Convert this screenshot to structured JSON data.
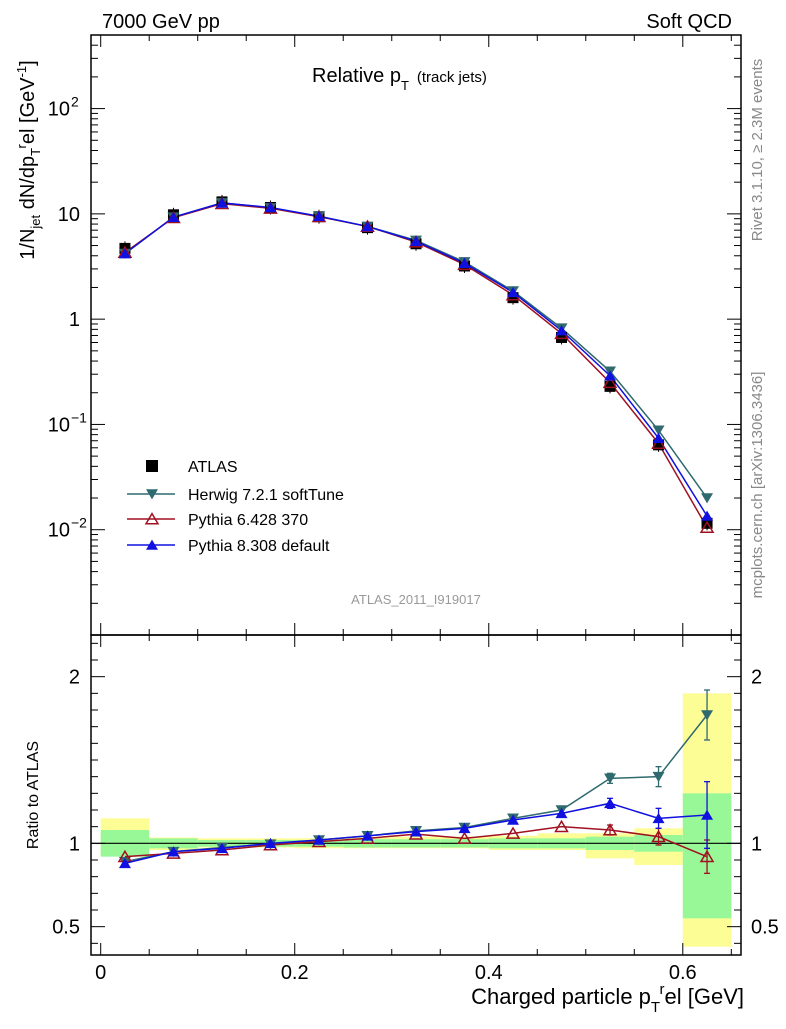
{
  "header": {
    "left": "7000 GeV pp",
    "right": "Soft QCD"
  },
  "side": {
    "rivet": "Rivet 3.1.10, ≥ 2.3M events",
    "mcplots": "mcplots.cern.ch [arXiv:1306.3436]"
  },
  "plot": {
    "title_main": "Relative p",
    "title_sub": "T",
    "title_note": "(track jets)",
    "analysis_id": "ATLAS_2011_I919017",
    "ylabel": "1/N_jet dN/dp_T^rel [GeV^-1]",
    "ratio_ylabel": "Ratio to ATLAS",
    "xlabel": "Charged particle p_T^rel [GeV]"
  },
  "chart_data": [
    {
      "type": "scatter",
      "panel": "main",
      "y_scale": "log",
      "xlim": [
        -0.01,
        0.66
      ],
      "ylim": [
        0.001,
        500
      ],
      "x_ticks": [
        "0",
        "0.2",
        "0.4",
        "0.6"
      ],
      "y_ticks": [
        "10^-2",
        "10^-1",
        "1",
        "10",
        "10^2"
      ],
      "x": [
        0.025,
        0.075,
        0.125,
        0.175,
        0.225,
        0.275,
        0.325,
        0.375,
        0.425,
        0.475,
        0.525,
        0.575,
        0.625
      ],
      "legend_position": "center-left",
      "series": [
        {
          "name": "ATLAS",
          "color": "#000000",
          "marker": "square",
          "values": [
            4.7,
            9.8,
            13.0,
            11.5,
            9.4,
            7.4,
            5.2,
            3.2,
            1.6,
            0.67,
            0.23,
            0.064,
            0.0115
          ]
        },
        {
          "name": "Herwig 7.2.1 softTune",
          "color": "#2f6a6e",
          "marker": "triangle-down",
          "values": [
            4.2,
            9.3,
            12.7,
            11.4,
            9.5,
            7.6,
            5.6,
            3.5,
            1.85,
            0.82,
            0.32,
            0.088,
            0.02
          ]
        },
        {
          "name": "Pythia 6.428 370",
          "color": "#a01020",
          "marker": "triangle-up-open",
          "values": [
            4.3,
            9.2,
            12.5,
            11.3,
            9.4,
            7.6,
            5.4,
            3.3,
            1.7,
            0.73,
            0.25,
            0.066,
            0.0105
          ]
        },
        {
          "name": "Pythia 8.308 default",
          "color": "#1010e0",
          "marker": "triangle-up",
          "values": [
            4.2,
            9.3,
            12.7,
            11.5,
            9.5,
            7.6,
            5.5,
            3.4,
            1.8,
            0.78,
            0.29,
            0.074,
            0.0135
          ]
        }
      ]
    },
    {
      "type": "scatter",
      "panel": "ratio",
      "xlim": [
        -0.01,
        0.66
      ],
      "ylim": [
        0.33,
        2.25
      ],
      "y_ticks": [
        "0.5",
        "1",
        "2"
      ],
      "x": [
        0.025,
        0.075,
        0.125,
        0.175,
        0.225,
        0.275,
        0.325,
        0.375,
        0.425,
        0.475,
        0.525,
        0.575,
        0.625
      ],
      "bin_edges": [
        0.0,
        0.05,
        0.1,
        0.15,
        0.2,
        0.25,
        0.3,
        0.35,
        0.4,
        0.45,
        0.5,
        0.55,
        0.6,
        0.65
      ],
      "band_inner": [
        [
          0.92,
          1.08
        ],
        [
          0.97,
          1.03
        ],
        [
          0.98,
          1.02
        ],
        [
          0.98,
          1.02
        ],
        [
          0.98,
          1.02
        ],
        [
          0.975,
          1.025
        ],
        [
          0.975,
          1.025
        ],
        [
          0.975,
          1.025
        ],
        [
          0.97,
          1.03
        ],
        [
          0.97,
          1.03
        ],
        [
          0.96,
          1.04
        ],
        [
          0.95,
          1.05
        ],
        [
          0.55,
          1.3
        ]
      ],
      "band_outer": [
        [
          0.93,
          1.15
        ],
        [
          0.96,
          1.035
        ],
        [
          0.975,
          1.03
        ],
        [
          0.975,
          1.03
        ],
        [
          0.97,
          1.03
        ],
        [
          0.97,
          1.035
        ],
        [
          0.97,
          1.04
        ],
        [
          0.97,
          1.04
        ],
        [
          0.96,
          1.045
        ],
        [
          0.96,
          1.06
        ],
        [
          0.91,
          1.06
        ],
        [
          0.87,
          1.09
        ],
        [
          0.38,
          1.9
        ]
      ],
      "series": [
        {
          "name": "Herwig 7.2.1 softTune",
          "color": "#2f6a6e",
          "marker": "triangle-down",
          "values": [
            0.89,
            0.95,
            0.975,
            0.995,
            1.02,
            1.045,
            1.075,
            1.095,
            1.15,
            1.2,
            1.39,
            1.4,
            1.77
          ],
          "errors": [
            0.01,
            0.01,
            0.01,
            0.01,
            0.01,
            0.01,
            0.01,
            0.01,
            0.015,
            0.015,
            0.03,
            0.06,
            0.15
          ]
        },
        {
          "name": "Pythia 6.428 370",
          "color": "#a01020",
          "marker": "triangle-up-open",
          "values": [
            0.92,
            0.94,
            0.96,
            0.99,
            1.01,
            1.03,
            1.055,
            1.03,
            1.06,
            1.1,
            1.08,
            1.04,
            0.92
          ],
          "errors": [
            0.01,
            0.01,
            0.01,
            0.01,
            0.01,
            0.01,
            0.01,
            0.01,
            0.015,
            0.02,
            0.03,
            0.05,
            0.1
          ]
        },
        {
          "name": "Pythia 8.308 default",
          "color": "#1010e0",
          "marker": "triangle-up",
          "values": [
            0.88,
            0.95,
            0.97,
            1.0,
            1.02,
            1.045,
            1.07,
            1.09,
            1.14,
            1.18,
            1.24,
            1.15,
            1.17
          ],
          "errors": [
            0.01,
            0.01,
            0.01,
            0.01,
            0.01,
            0.01,
            0.01,
            0.01,
            0.015,
            0.02,
            0.03,
            0.06,
            0.2
          ]
        }
      ]
    }
  ]
}
